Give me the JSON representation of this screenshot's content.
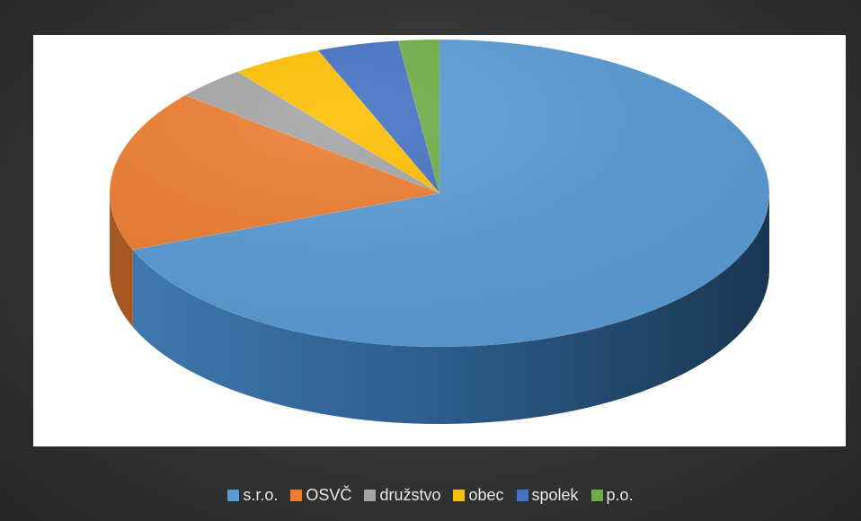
{
  "chart_data": {
    "type": "pie",
    "style": "3d",
    "title": "",
    "categories": [
      "s.r.o.",
      "OSVČ",
      "družstvo",
      "obec",
      "spolek",
      "p.o."
    ],
    "values": [
      69,
      17,
      3.5,
      4.5,
      4,
      2
    ],
    "unit": "percent",
    "colors": [
      "#5b9bd5",
      "#ed7d31",
      "#a5a5a5",
      "#ffc000",
      "#4472c4",
      "#70ad47"
    ],
    "legend_position": "bottom",
    "background": "#404040"
  },
  "legend": {
    "items": [
      {
        "label": "s.r.o.",
        "color": "#5b9bd5"
      },
      {
        "label": "OSVČ",
        "color": "#ed7d31"
      },
      {
        "label": "družstvo",
        "color": "#a5a5a5"
      },
      {
        "label": "obec",
        "color": "#ffc000"
      },
      {
        "label": "spolek",
        "color": "#4472c4"
      },
      {
        "label": "p.o.",
        "color": "#70ad47"
      }
    ]
  }
}
